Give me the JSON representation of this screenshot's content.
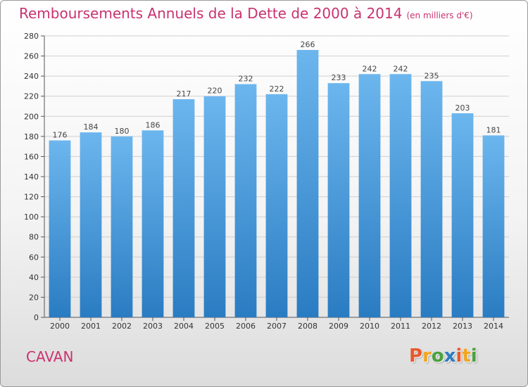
{
  "title": "Remboursements Annuels de la Dette de 2000 à 2014",
  "unit_note": "(en milliers d'€)",
  "commune": "CAVAN",
  "logo": {
    "text": "Proxiti",
    "letter_colors": [
      "#e8582a",
      "#f2a51f",
      "#4aa23d",
      "#2c7cc1",
      "#e8582a",
      "#f2a51f",
      "#4aa23d"
    ]
  },
  "colors": {
    "title": "#c8336e",
    "bar_top": "#6cb6ee",
    "bar_bottom": "#2a7cc2",
    "grid": "#cfcfcf"
  },
  "chart_data": {
    "type": "bar",
    "title": "Remboursements Annuels de la Dette de 2000 à 2014",
    "categories": [
      "2000",
      "2001",
      "2002",
      "2003",
      "2004",
      "2005",
      "2006",
      "2007",
      "2008",
      "2009",
      "2010",
      "2011",
      "2012",
      "2013",
      "2014"
    ],
    "values": [
      176,
      184,
      180,
      186,
      217,
      220,
      232,
      222,
      266,
      233,
      242,
      242,
      235,
      203,
      181
    ],
    "ylim": [
      0,
      280
    ],
    "yticks": [
      0,
      20,
      40,
      60,
      80,
      100,
      120,
      140,
      160,
      180,
      200,
      220,
      240,
      260,
      280
    ],
    "grid": true,
    "xlabel": "",
    "ylabel": ""
  }
}
